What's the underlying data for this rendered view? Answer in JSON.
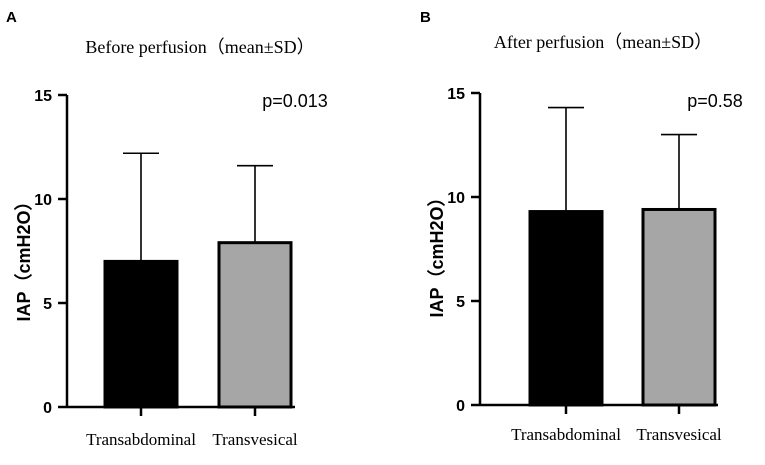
{
  "figure": {
    "panels": [
      "A",
      "B"
    ]
  },
  "chart_data": [
    {
      "type": "bar",
      "panel_label": "A",
      "title": "Before perfusion（mean±SD）",
      "ylabel": "IAP（cmH2O）",
      "xlabel": "",
      "categories": [
        "Transabdominal",
        "Transvesical"
      ],
      "values": [
        7.0,
        7.9
      ],
      "errors": [
        5.2,
        3.7
      ],
      "bar_colors": [
        "#000000",
        "#a6a6a6"
      ],
      "ylim": [
        0,
        15
      ],
      "yticks": [
        0,
        5,
        10,
        15
      ],
      "annotation": "p=0.013",
      "grid": false
    },
    {
      "type": "bar",
      "panel_label": "B",
      "title": "After perfusion（mean±SD）",
      "ylabel": "IAP（cmH2O）",
      "xlabel": "",
      "categories": [
        "Transabdominal",
        "Transvesical"
      ],
      "values": [
        9.3,
        9.4
      ],
      "errors": [
        5.0,
        3.6
      ],
      "bar_colors": [
        "#000000",
        "#a6a6a6"
      ],
      "ylim": [
        0,
        15
      ],
      "yticks": [
        0,
        5,
        10,
        15
      ],
      "annotation": "p=0.58",
      "grid": false
    }
  ]
}
